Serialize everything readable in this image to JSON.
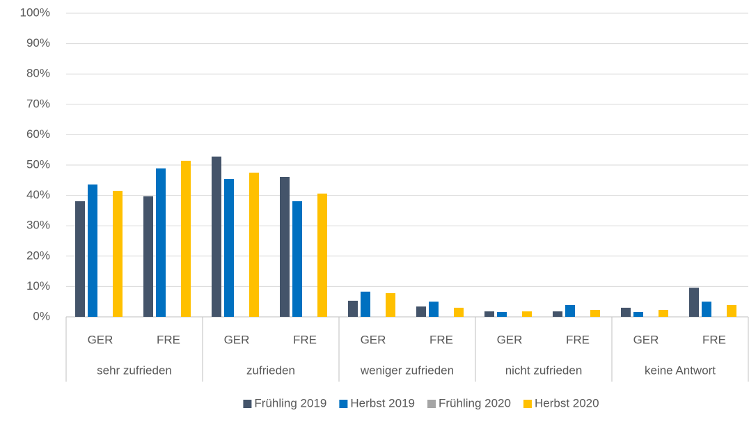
{
  "chart_data": {
    "type": "bar",
    "categories": [
      "GER",
      "FRE",
      "GER",
      "FRE",
      "GER",
      "FRE",
      "GER",
      "FRE",
      "GER",
      "FRE"
    ],
    "groups": [
      "sehr zufrieden",
      "zufrieden",
      "weniger zufrieden",
      "nicht zufrieden",
      "keine Antwort"
    ],
    "series": [
      {
        "name": "Frühling 2019",
        "color": "#44546a",
        "values": [
          38.1,
          39.7,
          52.8,
          46.1,
          5.3,
          3.4,
          1.8,
          1.8,
          3.0,
          9.6
        ]
      },
      {
        "name": "Herbst 2019",
        "color": "#0070c0",
        "values": [
          43.6,
          48.9,
          45.4,
          38.1,
          8.3,
          5.0,
          1.6,
          3.9,
          1.6,
          5.0
        ]
      },
      {
        "name": "Frühling 2020",
        "color": "#a5a5a5",
        "values": [
          null,
          null,
          null,
          null,
          null,
          null,
          null,
          null,
          null,
          null
        ]
      },
      {
        "name": "Herbst 2020",
        "color": "#ffc000",
        "values": [
          41.5,
          51.4,
          47.5,
          40.6,
          7.8,
          3.0,
          1.8,
          2.3,
          2.3,
          3.9
        ]
      }
    ],
    "ylim": [
      0,
      100
    ],
    "yticks": [
      {
        "value": 0,
        "label": "0%"
      },
      {
        "value": 10,
        "label": "10%"
      },
      {
        "value": 20,
        "label": "20%"
      },
      {
        "value": 30,
        "label": "30%"
      },
      {
        "value": 40,
        "label": "40%"
      },
      {
        "value": 50,
        "label": "50%"
      },
      {
        "value": 60,
        "label": "60%"
      },
      {
        "value": 70,
        "label": "70%"
      },
      {
        "value": 80,
        "label": "80%"
      },
      {
        "value": 90,
        "label": "90%"
      },
      {
        "value": 100,
        "label": "100%"
      }
    ],
    "grid": true,
    "legend": "bottom"
  }
}
